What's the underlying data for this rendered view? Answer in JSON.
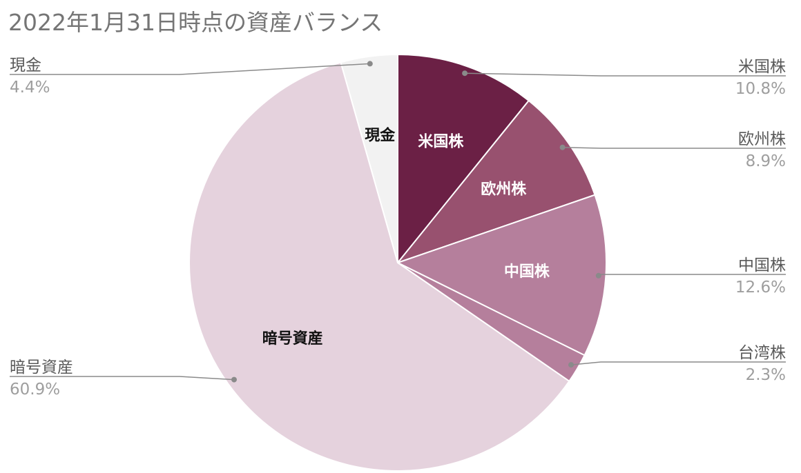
{
  "chart_data": {
    "type": "pie",
    "title": "2022年1月31日時点の資産バランス",
    "slices": [
      {
        "label": "米国株",
        "value": 10.8,
        "display": "10.8%",
        "color": "#6b2045",
        "label_color": "#ffffff",
        "side": "right"
      },
      {
        "label": "欧州株",
        "value": 8.9,
        "display": "8.9%",
        "color": "#98516f",
        "label_color": "#ffffff",
        "side": "right"
      },
      {
        "label": "中国株",
        "value": 12.6,
        "display": "12.6%",
        "color": "#b57f9c",
        "label_color": "#ffffff",
        "side": "right"
      },
      {
        "label": "台湾株",
        "value": 2.3,
        "display": "2.3%",
        "color": "#b57f9c",
        "label_color": "",
        "side": "right"
      },
      {
        "label": "暗号資産",
        "value": 60.9,
        "display": "60.9%",
        "color": "#e5d2dd",
        "label_color": "#111111",
        "side": "left"
      },
      {
        "label": "現金",
        "value": 4.4,
        "display": "4.4%",
        "color": "#f2f2f2",
        "label_color": "#111111",
        "side": "left"
      }
    ],
    "start_angle": "12 o'clock",
    "direction": "clockwise",
    "legend": "outside labels with leader lines",
    "data_labels": "inside slice"
  }
}
